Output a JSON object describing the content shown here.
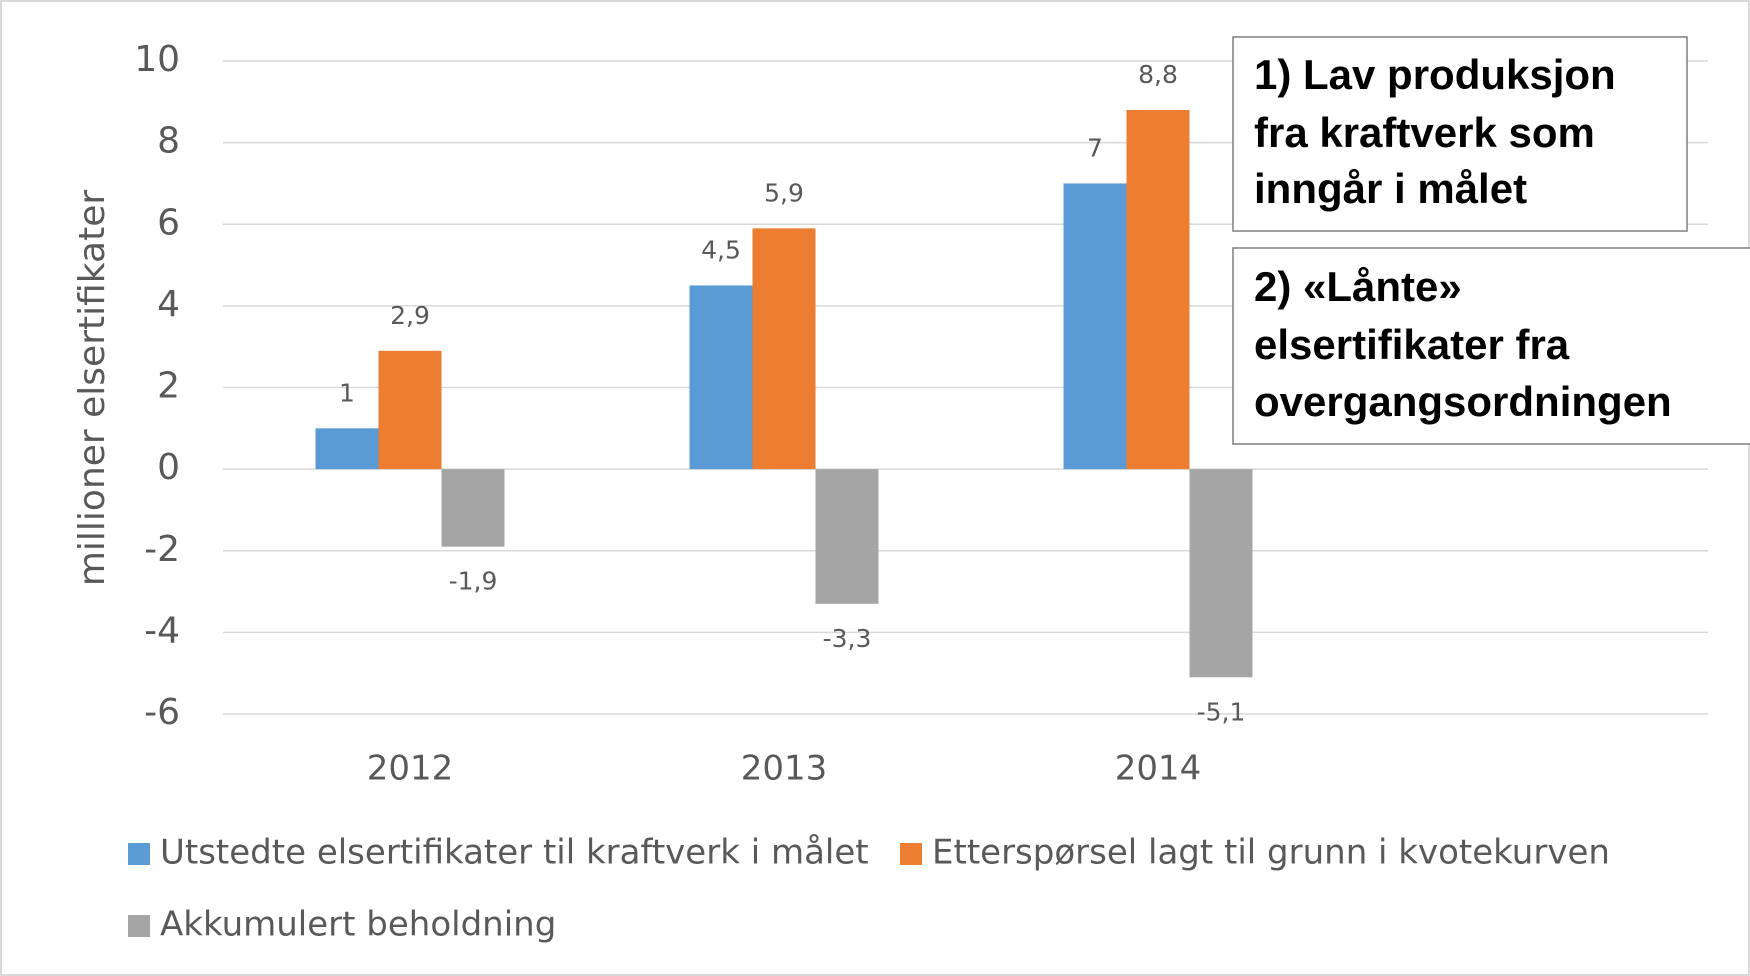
{
  "chart_data": {
    "type": "bar",
    "y_label": "millioner elsertifikater",
    "categories": [
      "2012",
      "2013",
      "2014"
    ],
    "series": [
      {
        "name": "Utstedte elsertifikater til kraftverk i målet",
        "color": "#5b9bd5",
        "values": [
          1,
          4.5,
          7
        ],
        "value_labels": [
          "1",
          "4,5",
          "7"
        ]
      },
      {
        "name": "Etterspørsel lagt til grunn i kvotekurven",
        "color": "#ed7d31",
        "values": [
          2.9,
          5.9,
          8.8
        ],
        "value_labels": [
          "2,9",
          "5,9",
          "8,8"
        ]
      },
      {
        "name": "Akkumulert beholdning",
        "color": "#a5a5a5",
        "values": [
          -1.9,
          -3.3,
          -5.1
        ],
        "value_labels": [
          "-1,9",
          "-3,3",
          "-5,1"
        ]
      }
    ],
    "ylim": [
      -6,
      10
    ],
    "yticks": [
      -6,
      -4,
      -2,
      0,
      2,
      4,
      6,
      8,
      10
    ],
    "grid": true,
    "annotations": [
      {
        "lines": [
          "1) Lav produksjon",
          "fra kraftverk som",
          "inngår i målet"
        ]
      },
      {
        "lines": [
          "2) «Lånte»",
          "elsertifikater fra",
          "overgangsordningen"
        ]
      }
    ]
  }
}
